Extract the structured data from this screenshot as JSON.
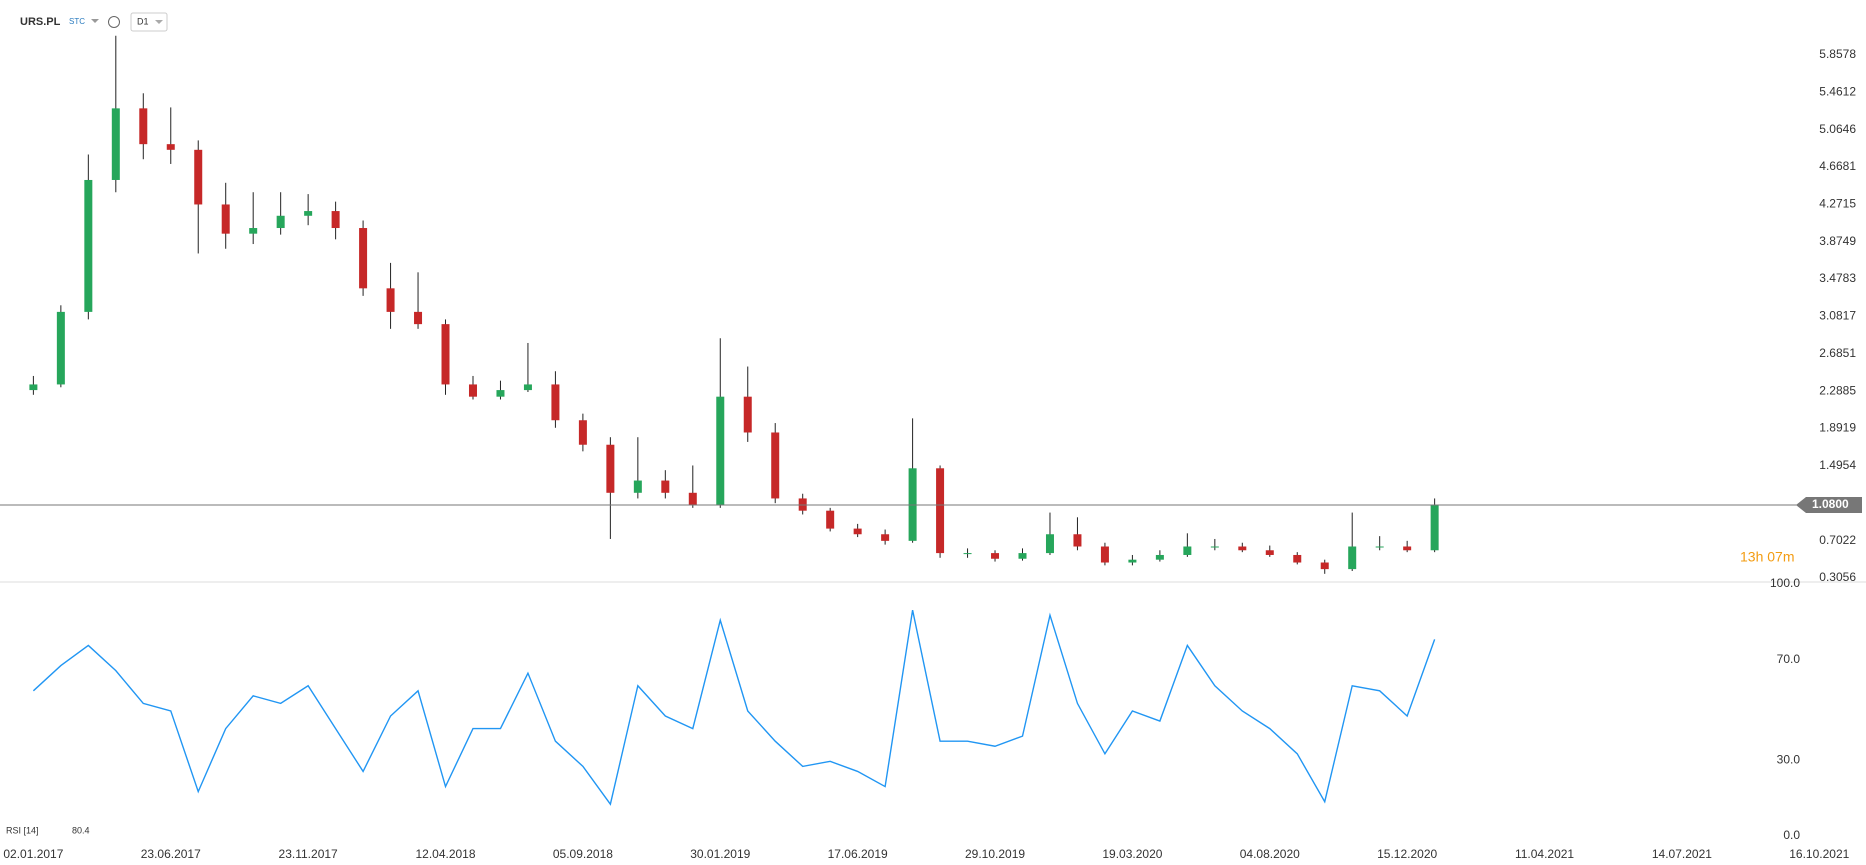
{
  "header": {
    "symbol": "URS.PL",
    "market": "STC",
    "interval": "D1"
  },
  "chart_data": [
    {
      "type": "candlestick",
      "x": [
        0,
        0.2,
        0.4,
        0.6,
        0.8,
        1,
        1.2,
        1.4,
        1.6,
        1.8,
        2,
        2.2,
        2.4,
        2.6,
        2.8,
        3,
        3.2,
        3.4,
        3.6,
        3.8,
        4,
        4.2,
        4.4,
        4.6,
        4.8,
        5,
        5.2,
        5.4,
        5.6,
        5.8,
        6,
        6.2,
        6.4,
        6.6,
        6.8,
        7,
        7.2,
        7.4,
        7.6,
        7.8,
        8,
        8.2,
        8.4,
        8.6,
        8.8,
        9,
        9.2,
        9.4,
        9.6,
        9.8,
        10,
        10.2
      ],
      "open": [
        2.3,
        2.36,
        3.13,
        4.53,
        5.29,
        4.91,
        4.85,
        4.27,
        3.96,
        4.02,
        4.15,
        4.2,
        4.02,
        3.38,
        3.13,
        3.0,
        2.36,
        2.23,
        2.3,
        2.36,
        1.98,
        1.72,
        1.21,
        1.34,
        1.21,
        1.08,
        2.23,
        1.85,
        1.15,
        1.02,
        0.83,
        0.77,
        0.7,
        1.47,
        0.57,
        0.57,
        0.51,
        0.57,
        0.77,
        0.64,
        0.47,
        0.5,
        0.55,
        0.64,
        0.64,
        0.6,
        0.55,
        0.47,
        0.4,
        0.64,
        0.64,
        0.6
      ],
      "high": [
        2.45,
        3.2,
        4.8,
        6.06,
        5.45,
        5.3,
        4.95,
        4.5,
        4.4,
        4.4,
        4.38,
        4.3,
        4.1,
        3.65,
        3.55,
        3.05,
        2.45,
        2.4,
        2.8,
        2.5,
        2.05,
        1.8,
        1.8,
        1.45,
        1.5,
        2.85,
        2.55,
        1.95,
        1.2,
        1.05,
        0.88,
        0.82,
        2.0,
        1.5,
        0.62,
        0.6,
        0.62,
        1.0,
        0.95,
        0.68,
        0.55,
        0.6,
        0.78,
        0.72,
        0.68,
        0.65,
        0.58,
        0.5,
        1.0,
        0.75,
        0.7,
        1.15
      ],
      "low": [
        2.25,
        2.33,
        3.05,
        4.4,
        4.75,
        4.7,
        3.75,
        3.8,
        3.85,
        3.95,
        4.05,
        3.9,
        3.3,
        2.95,
        2.95,
        2.25,
        2.2,
        2.2,
        2.28,
        1.9,
        1.65,
        0.72,
        1.15,
        1.15,
        1.05,
        1.05,
        1.75,
        1.1,
        0.98,
        0.8,
        0.74,
        0.66,
        0.68,
        0.52,
        0.52,
        0.48,
        0.49,
        0.55,
        0.6,
        0.44,
        0.44,
        0.48,
        0.53,
        0.6,
        0.58,
        0.53,
        0.45,
        0.35,
        0.38,
        0.6,
        0.58,
        0.58
      ],
      "close": [
        2.36,
        3.13,
        4.53,
        5.29,
        4.91,
        4.85,
        4.27,
        3.96,
        4.02,
        4.15,
        4.2,
        4.02,
        3.38,
        3.13,
        3.0,
        2.36,
        2.23,
        2.3,
        2.36,
        1.98,
        1.72,
        1.21,
        1.34,
        1.21,
        1.08,
        2.23,
        1.85,
        1.15,
        1.02,
        0.83,
        0.77,
        0.7,
        1.47,
        0.57,
        0.57,
        0.51,
        0.57,
        0.77,
        0.64,
        0.47,
        0.5,
        0.55,
        0.64,
        0.64,
        0.6,
        0.55,
        0.47,
        0.4,
        0.64,
        0.64,
        0.6,
        1.08
      ],
      "up_color": "#26a65b",
      "down_color": "#c62828",
      "ylim": [
        0.242,
        6.44
      ],
      "yticks": [
        0.3056,
        0.7022,
        1.4954,
        1.8919,
        2.2885,
        2.6851,
        3.0817,
        3.4783,
        3.8749,
        4.2715,
        4.6681,
        5.0646,
        5.4612,
        5.8578
      ],
      "xlim": [
        -0.243,
        13.34
      ],
      "last_price": {
        "value": 1.08,
        "label": "1.0800"
      },
      "countdown": "13h 07m"
    },
    {
      "type": "line",
      "indicator": "RSI [14]",
      "x": [
        0,
        0.2,
        0.4,
        0.6,
        0.8,
        1,
        1.2,
        1.4,
        1.6,
        1.8,
        2,
        2.2,
        2.4,
        2.6,
        2.8,
        3,
        3.2,
        3.4,
        3.6,
        3.8,
        4,
        4.2,
        4.4,
        4.6,
        4.8,
        5,
        5.2,
        5.4,
        5.6,
        5.8,
        6,
        6.2,
        6.4,
        6.6,
        6.8,
        7,
        7.2,
        7.4,
        7.6,
        7.8,
        8,
        8.2,
        8.4,
        8.6,
        8.8,
        9,
        9.2,
        9.4,
        9.6,
        9.8,
        10,
        10.2
      ],
      "series": [
        {
          "name": "RSI",
          "color": "#2196f3",
          "values": [
            60,
            70,
            78,
            68,
            55,
            52,
            20,
            45,
            58,
            55,
            62,
            45,
            28,
            50,
            60,
            22,
            45,
            45,
            67,
            40,
            30,
            15,
            62,
            50,
            45,
            88,
            52,
            40,
            30,
            32,
            28,
            22,
            92,
            40,
            40,
            38,
            42,
            90,
            55,
            35,
            52,
            48,
            78,
            62,
            52,
            45,
            35,
            16,
            62,
            60,
            50,
            80.4
          ]
        }
      ],
      "ylim": [
        0,
        100
      ],
      "yticks": [
        {
          "value": 0,
          "label": "0.0"
        },
        {
          "value": 30,
          "label": "30.0"
        },
        {
          "value": 70,
          "label": "70.0"
        },
        {
          "value": 100,
          "label": "100.0"
        }
      ],
      "xlim": [
        -0.243,
        13.34
      ],
      "xticks": [
        {
          "value": 0,
          "label": "02.01.2017"
        },
        {
          "value": 1,
          "label": "23.06.2017"
        },
        {
          "value": 2,
          "label": "23.11.2017"
        },
        {
          "value": 3,
          "label": "12.04.2018"
        },
        {
          "value": 4,
          "label": "05.09.2018"
        },
        {
          "value": 5,
          "label": "30.01.2019"
        },
        {
          "value": 6,
          "label": "17.06.2019"
        },
        {
          "value": 7,
          "label": "29.10.2019"
        },
        {
          "value": 8,
          "label": "19.03.2020"
        },
        {
          "value": 9,
          "label": "04.08.2020"
        },
        {
          "value": 10,
          "label": "15.12.2020"
        },
        {
          "value": 11,
          "label": "11.04.2021"
        },
        {
          "value": 12,
          "label": "14.07.2021"
        },
        {
          "value": 13,
          "label": "16.10.2021"
        }
      ]
    }
  ]
}
